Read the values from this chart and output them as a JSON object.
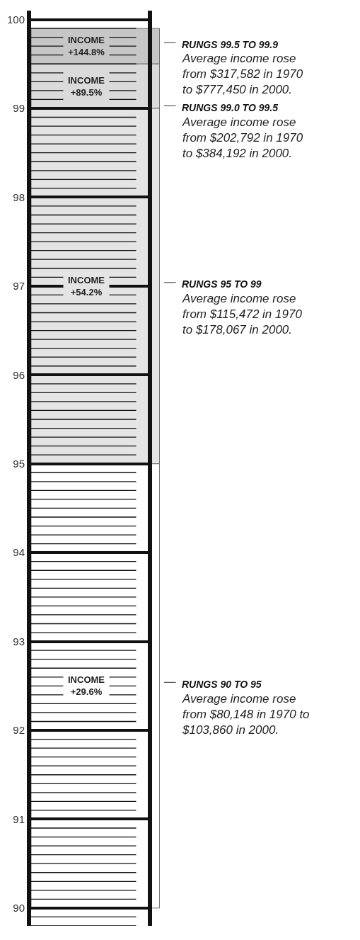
{
  "chart_data": {
    "type": "bar",
    "categories": [
      null
    ],
    "values": [
      null
    ],
    "ylim": [
      89.8,
      100.1
    ],
    "yticks": [
      90,
      91,
      92,
      93,
      94,
      95,
      96,
      97,
      98,
      99,
      100
    ],
    "grid": "y",
    "bands": [
      {
        "axis": "y",
        "from": 99.5,
        "to": 99.9,
        "label": "RUNGS 99.5 TO 99.9",
        "color": "#c6c6c6"
      },
      {
        "axis": "y",
        "from": 99.0,
        "to": 99.5,
        "label": "RUNGS 99.0 TO 99.5",
        "color": "#dadada"
      },
      {
        "axis": "y",
        "from": 95,
        "to": 99,
        "label": "RUNGS 95 TO 99",
        "color": "#e4e4e4"
      },
      {
        "axis": "y",
        "from": 90,
        "to": 95,
        "label": "RUNGS 90 TO 95",
        "color": "#ffffff"
      }
    ],
    "annotations": [
      "Average income rose\nfrom $317,582 in 1970\nto $777,450 in 2000.",
      "Average income rose\nfrom $202,792 in 1970\nto $384,192 in 2000.",
      "Average income rose\nfrom $115,472 in 1970\nto $178,067 in 2000.",
      "Average income rose\nfrom $80,148 in 1970 to\n$103,860 in 2000.",
      "INCOME\n+144.8%",
      "INCOME\n+89.5%",
      "INCOME\n+54.2%",
      "INCOME\n+29.6%"
    ]
  }
}
